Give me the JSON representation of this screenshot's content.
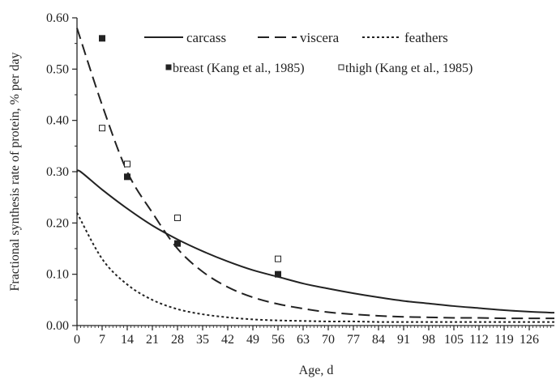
{
  "chart_data": {
    "type": "line",
    "xlabel": "Age, d",
    "ylabel": "Fractional synthesis rate of protein, % per day",
    "xlim": [
      0,
      133
    ],
    "ylim": [
      0,
      0.6
    ],
    "x_ticks": [
      0,
      7,
      14,
      21,
      28,
      35,
      42,
      49,
      56,
      63,
      70,
      77,
      84,
      91,
      98,
      105,
      112,
      119,
      126
    ],
    "x_tick_labels": [
      "0",
      "7",
      "14",
      "21",
      "28",
      "35",
      "42",
      "49",
      "56",
      "63",
      "70",
      "77",
      "84",
      "91",
      "98",
      "105",
      "112",
      "119",
      "126"
    ],
    "y_ticks": [
      0,
      0.1,
      0.2,
      0.3,
      0.4,
      0.5,
      0.6
    ],
    "y_tick_labels": [
      "0.00",
      "0.10",
      "0.20",
      "0.30",
      "0.40",
      "0.50",
      "0.60"
    ],
    "grid": false,
    "legend_position": "top-right",
    "series": [
      {
        "name": "carcass",
        "style": "solid",
        "x": [
          0,
          1,
          7,
          14,
          21,
          28,
          35,
          42,
          49,
          56,
          63,
          70,
          77,
          84,
          91,
          98,
          105,
          112,
          119,
          126,
          133
        ],
        "y": [
          0.3,
          0.3,
          0.265,
          0.228,
          0.195,
          0.168,
          0.145,
          0.125,
          0.108,
          0.095,
          0.082,
          0.072,
          0.063,
          0.055,
          0.048,
          0.043,
          0.038,
          0.034,
          0.03,
          0.027,
          0.025
        ]
      },
      {
        "name": "viscera",
        "style": "dashed",
        "x": [
          0,
          7,
          14,
          21,
          28,
          35,
          42,
          49,
          56,
          63,
          70,
          77,
          84,
          91,
          98,
          105,
          112,
          119,
          126,
          133
        ],
        "y": [
          0.58,
          0.43,
          0.3,
          0.22,
          0.15,
          0.105,
          0.075,
          0.055,
          0.042,
          0.033,
          0.026,
          0.022,
          0.019,
          0.017,
          0.016,
          0.015,
          0.015,
          0.014,
          0.014,
          0.014
        ]
      },
      {
        "name": "feathers",
        "style": "dotted",
        "x": [
          0,
          7,
          14,
          21,
          28,
          35,
          42,
          49,
          56,
          63,
          70,
          77,
          84,
          91,
          98,
          105,
          112,
          119,
          126,
          133
        ],
        "y": [
          0.22,
          0.13,
          0.08,
          0.05,
          0.032,
          0.022,
          0.016,
          0.012,
          0.01,
          0.009,
          0.008,
          0.008,
          0.007,
          0.007,
          0.007,
          0.007,
          0.007,
          0.007,
          0.007,
          0.007
        ]
      },
      {
        "name": "breast (Kang et al., 1985)",
        "style": "filled-square",
        "x": [
          7,
          14,
          28,
          56
        ],
        "y": [
          0.56,
          0.29,
          0.16,
          0.1
        ]
      },
      {
        "name": "thigh (Kang et al., 1985)",
        "style": "open-square",
        "x": [
          7,
          14,
          28,
          56
        ],
        "y": [
          0.385,
          0.315,
          0.21,
          0.13
        ]
      }
    ]
  }
}
